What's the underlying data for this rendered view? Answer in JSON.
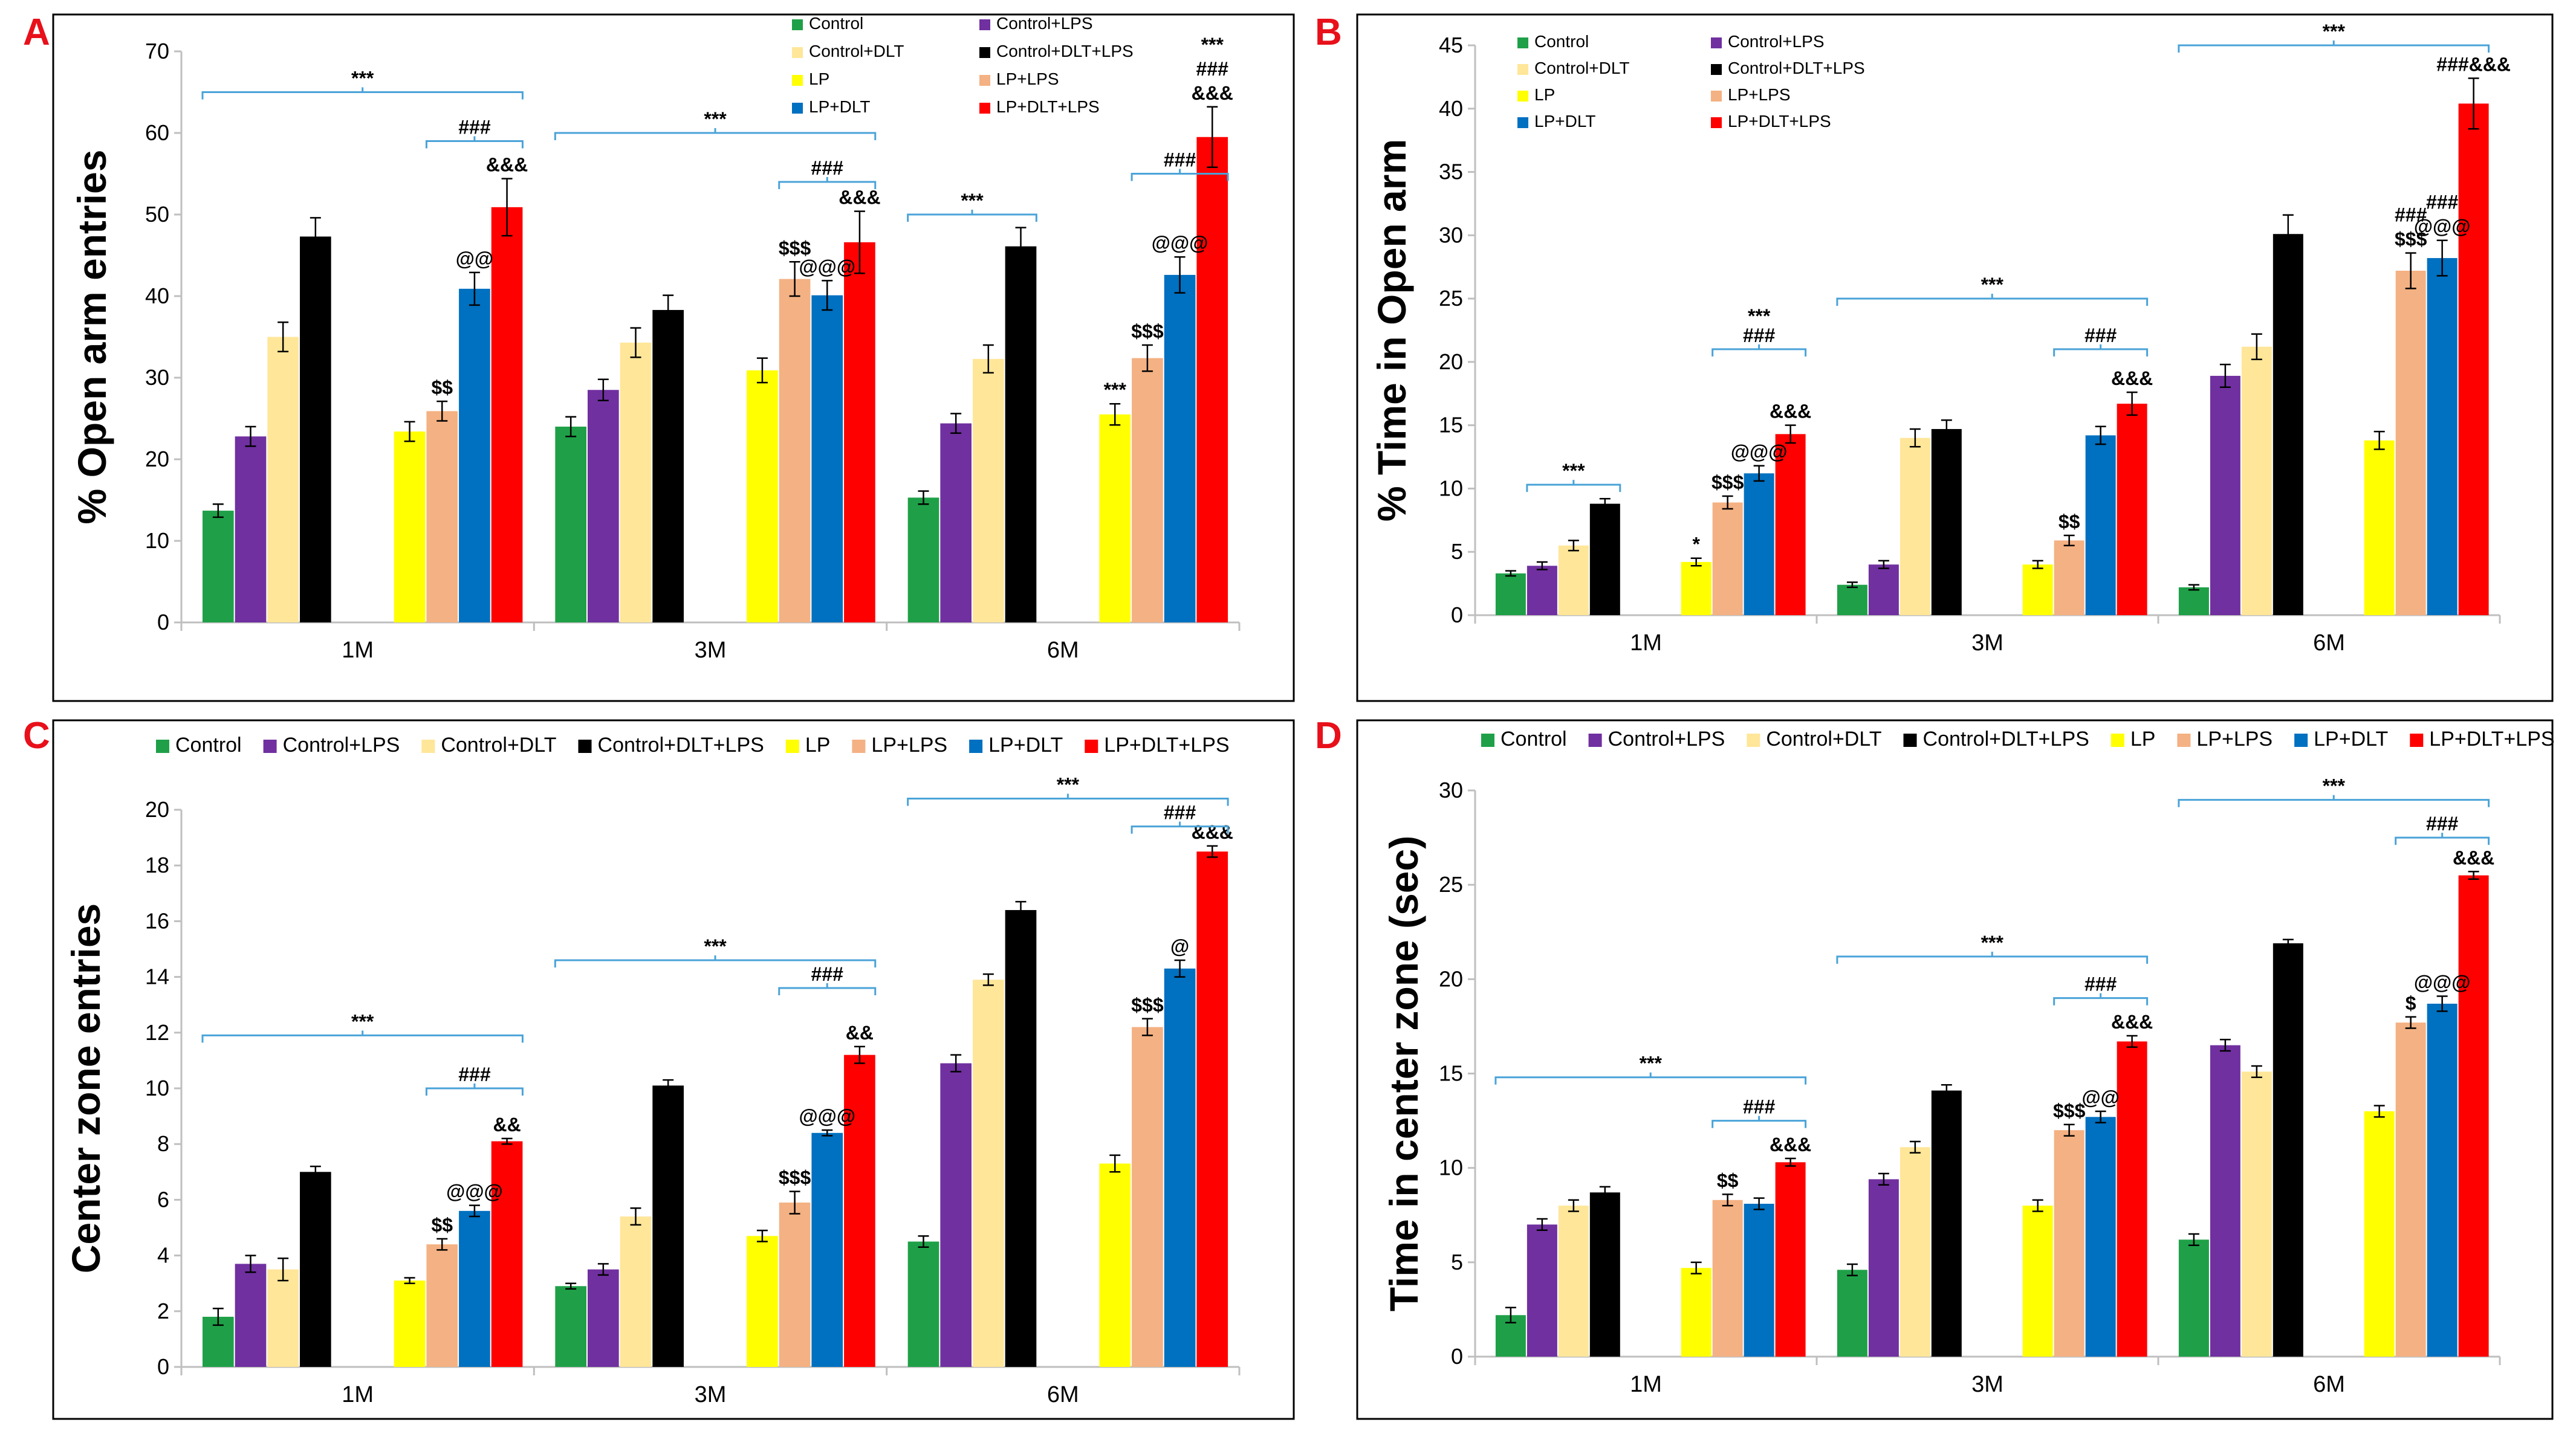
{
  "colors": [
    "#1fa048",
    "#7030a0",
    "#ffe699",
    "#000000",
    "#ffff00",
    "#f4b183",
    "#0070c0",
    "#ff0000"
  ],
  "chart_data": [
    {
      "panel": "A",
      "type": "bar",
      "ylabel": "% Open arm entries",
      "ylim": [
        0,
        70
      ],
      "yticks": [
        "0",
        "10",
        "20",
        "30",
        "40",
        "50",
        "60",
        "70"
      ],
      "categories": [
        "1M",
        "3M",
        "6M"
      ],
      "legend": [
        "Control",
        "Control+LPS",
        "Control+DLT",
        "Control+DLT+LPS",
        "LP",
        "LP+LPS",
        "LP+DLT",
        "LP+DLT+LPS"
      ],
      "series": [
        {
          "name": "Control",
          "values": [
            13.7,
            24.0,
            15.3
          ],
          "errors": [
            0.8,
            1.2,
            0.8
          ]
        },
        {
          "name": "Control+LPS",
          "values": [
            22.8,
            28.5,
            24.4
          ],
          "errors": [
            1.2,
            1.3,
            1.2
          ]
        },
        {
          "name": "Control+DLT",
          "values": [
            35.0,
            34.3,
            32.3
          ],
          "errors": [
            1.8,
            1.8,
            1.7
          ]
        },
        {
          "name": "Control+DLT+LPS",
          "values": [
            47.3,
            38.3,
            46.1
          ],
          "errors": [
            2.3,
            1.8,
            2.3
          ]
        },
        {
          "name": "LP",
          "values": [
            23.4,
            30.9,
            25.5
          ],
          "errors": [
            1.2,
            1.5,
            1.3
          ]
        },
        {
          "name": "LP+LPS",
          "values": [
            25.9,
            42.1,
            32.4
          ],
          "errors": [
            1.2,
            2.1,
            1.6
          ]
        },
        {
          "name": "LP+DLT",
          "values": [
            40.9,
            40.1,
            42.6
          ],
          "errors": [
            2.0,
            1.8,
            2.2
          ]
        },
        {
          "name": "LP+DLT+LPS",
          "values": [
            50.9,
            46.6,
            59.5
          ],
          "errors": [
            3.5,
            3.8,
            3.7
          ]
        }
      ],
      "annotations": [
        {
          "cat": 0,
          "series": 5,
          "text": "$$"
        },
        {
          "cat": 0,
          "series": 6,
          "text": "@@"
        },
        {
          "cat": 0,
          "series": 7,
          "text": "&&&"
        },
        {
          "cat": 1,
          "series": 5,
          "text": "$$$"
        },
        {
          "cat": 1,
          "series": 6,
          "text": "@@@"
        },
        {
          "cat": 1,
          "series": 7,
          "text": "&&&"
        },
        {
          "cat": 2,
          "series": 4,
          "text": "***"
        },
        {
          "cat": 2,
          "series": 5,
          "text": "$$$"
        },
        {
          "cat": 2,
          "series": 6,
          "text": "@@@"
        },
        {
          "cat": 2,
          "series": 7,
          "text": "&&&"
        },
        {
          "cat": 2,
          "series": 7,
          "text": "###"
        },
        {
          "cat": 2,
          "series": 7,
          "text": "***"
        }
      ],
      "brackets": [
        {
          "cat": 0,
          "from": 0,
          "to": 7,
          "y": 65,
          "text": "***"
        },
        {
          "cat": 0,
          "from": 5,
          "to": 7,
          "y": 59,
          "text": "###"
        },
        {
          "cat": 1,
          "from": 0,
          "to": 7,
          "y": 60,
          "text": "***"
        },
        {
          "cat": 1,
          "from": 5,
          "to": 7,
          "y": 54,
          "text": "###"
        },
        {
          "cat": 2,
          "from": 0,
          "to": 3,
          "y": 50,
          "text": "***"
        },
        {
          "cat": 2,
          "from": 5,
          "to": 7,
          "y": 55,
          "text": "###"
        }
      ]
    },
    {
      "panel": "B",
      "type": "bar",
      "ylabel": "% Time in Open arm",
      "ylim": [
        0,
        45
      ],
      "yticks": [
        "0",
        "5",
        "10",
        "15",
        "20",
        "25",
        "30",
        "35",
        "40",
        "45"
      ],
      "categories": [
        "1M",
        "3M",
        "6M"
      ],
      "legend": [
        "Control",
        "Control+LPS",
        "Control+DLT",
        "Control+DLT+LPS",
        "LP",
        "LP+LPS",
        "LP+DLT",
        "LP+DLT+LPS"
      ],
      "series": [
        {
          "name": "Control",
          "values": [
            3.3,
            2.4,
            2.2
          ],
          "errors": [
            0.2,
            0.2,
            0.2
          ]
        },
        {
          "name": "Control+LPS",
          "values": [
            3.9,
            4.0,
            18.9
          ],
          "errors": [
            0.3,
            0.3,
            0.9
          ]
        },
        {
          "name": "Control+DLT",
          "values": [
            5.5,
            14.0,
            21.2
          ],
          "errors": [
            0.4,
            0.7,
            1.0
          ]
        },
        {
          "name": "Control+DLT+LPS",
          "values": [
            8.8,
            14.7,
            30.1
          ],
          "errors": [
            0.4,
            0.7,
            1.5
          ]
        },
        {
          "name": "LP",
          "values": [
            4.2,
            4.0,
            13.8
          ],
          "errors": [
            0.3,
            0.3,
            0.7
          ]
        },
        {
          "name": "LP+LPS",
          "values": [
            8.9,
            5.9,
            27.2
          ],
          "errors": [
            0.5,
            0.4,
            1.4
          ]
        },
        {
          "name": "LP+DLT",
          "values": [
            11.2,
            14.2,
            28.2
          ],
          "errors": [
            0.6,
            0.7,
            1.4
          ]
        },
        {
          "name": "LP+DLT+LPS",
          "values": [
            14.3,
            16.7,
            40.4
          ],
          "errors": [
            0.7,
            0.9,
            2.0
          ]
        }
      ],
      "annotations": [
        {
          "cat": 0,
          "series": 4,
          "text": "*"
        },
        {
          "cat": 0,
          "series": 5,
          "text": "$$$"
        },
        {
          "cat": 0,
          "series": 6,
          "text": "@@@"
        },
        {
          "cat": 0,
          "series": 7,
          "text": "&&&"
        },
        {
          "cat": 1,
          "series": 5,
          "text": "$$"
        },
        {
          "cat": 1,
          "series": 7,
          "text": "&&&"
        },
        {
          "cat": 2,
          "series": 5,
          "text": "$$$"
        },
        {
          "cat": 2,
          "series": 5,
          "text": "###"
        },
        {
          "cat": 2,
          "series": 6,
          "text": "@@@"
        },
        {
          "cat": 2,
          "series": 6,
          "text": "###"
        },
        {
          "cat": 2,
          "series": 7,
          "text": "###&&&"
        }
      ],
      "brackets": [
        {
          "cat": 0,
          "from": 1,
          "to": 3,
          "y": 10.3,
          "text": "***"
        },
        {
          "cat": 0,
          "from": 5,
          "to": 7,
          "y": 21,
          "text": "###"
        },
        {
          "cat": 0,
          "from": 5,
          "to": 7,
          "y": 21,
          "text": "***",
          "above": true
        },
        {
          "cat": 1,
          "from": 0,
          "to": 7,
          "y": 25,
          "text": "***"
        },
        {
          "cat": 1,
          "from": 5,
          "to": 7,
          "y": 21,
          "text": "###"
        },
        {
          "cat": 2,
          "from": 0,
          "to": 7,
          "y": 45,
          "text": "***"
        }
      ]
    },
    {
      "panel": "C",
      "type": "bar",
      "ylabel": "Center zone entries",
      "ylim": [
        0,
        20
      ],
      "yticks": [
        "0",
        "2",
        "4",
        "6",
        "8",
        "10",
        "12",
        "14",
        "16",
        "18",
        "20"
      ],
      "categories": [
        "1M",
        "3M",
        "6M"
      ],
      "legend": [
        "Control",
        "Control+LPS",
        "Control+DLT",
        "Control+DLT+LPS",
        "LP",
        "LP+LPS",
        "LP+DLT",
        "LP+DLT+LPS"
      ],
      "series": [
        {
          "name": "Control",
          "values": [
            1.8,
            2.9,
            4.5
          ],
          "errors": [
            0.3,
            0.1,
            0.2
          ]
        },
        {
          "name": "Control+LPS",
          "values": [
            3.7,
            3.5,
            10.9
          ],
          "errors": [
            0.3,
            0.2,
            0.3
          ]
        },
        {
          "name": "Control+DLT",
          "values": [
            3.5,
            5.4,
            13.9
          ],
          "errors": [
            0.4,
            0.3,
            0.2
          ]
        },
        {
          "name": "Control+DLT+LPS",
          "values": [
            7.0,
            10.1,
            16.4
          ],
          "errors": [
            0.2,
            0.2,
            0.3
          ]
        },
        {
          "name": "LP",
          "values": [
            3.1,
            4.7,
            7.3
          ],
          "errors": [
            0.1,
            0.2,
            0.3
          ]
        },
        {
          "name": "LP+LPS",
          "values": [
            4.4,
            5.9,
            12.2
          ],
          "errors": [
            0.2,
            0.4,
            0.3
          ]
        },
        {
          "name": "LP+DLT",
          "values": [
            5.6,
            8.4,
            14.3
          ],
          "errors": [
            0.2,
            0.1,
            0.3
          ]
        },
        {
          "name": "LP+DLT+LPS",
          "values": [
            8.1,
            11.2,
            18.5
          ],
          "errors": [
            0.1,
            0.3,
            0.2
          ]
        }
      ],
      "annotations": [
        {
          "cat": 0,
          "series": 5,
          "text": "$$"
        },
        {
          "cat": 0,
          "series": 6,
          "text": "@@@"
        },
        {
          "cat": 0,
          "series": 7,
          "text": "&&"
        },
        {
          "cat": 1,
          "series": 5,
          "text": "$$$"
        },
        {
          "cat": 1,
          "series": 6,
          "text": "@@@"
        },
        {
          "cat": 1,
          "series": 7,
          "text": "&&"
        },
        {
          "cat": 2,
          "series": 5,
          "text": "$$$"
        },
        {
          "cat": 2,
          "series": 6,
          "text": "@"
        },
        {
          "cat": 2,
          "series": 7,
          "text": "&&&"
        }
      ],
      "brackets": [
        {
          "cat": 0,
          "from": 0,
          "to": 7,
          "y": 11.9,
          "text": "***"
        },
        {
          "cat": 0,
          "from": 5,
          "to": 7,
          "y": 10,
          "text": "###"
        },
        {
          "cat": 1,
          "from": 0,
          "to": 7,
          "y": 14.6,
          "text": "***"
        },
        {
          "cat": 1,
          "from": 5,
          "to": 7,
          "y": 13.6,
          "text": "###"
        },
        {
          "cat": 2,
          "from": 0,
          "to": 7,
          "y": 20.4,
          "text": "***"
        },
        {
          "cat": 2,
          "from": 5,
          "to": 7,
          "y": 19.4,
          "text": "###"
        }
      ]
    },
    {
      "panel": "D",
      "type": "bar",
      "ylabel": "Time in center zone (sec)",
      "ylim": [
        0,
        30
      ],
      "yticks": [
        "0",
        "5",
        "10",
        "15",
        "20",
        "25",
        "30"
      ],
      "categories": [
        "1M",
        "3M",
        "6M"
      ],
      "legend": [
        "Control",
        "Control+LPS",
        "Control+DLT",
        "Control+DLT+LPS",
        "LP",
        "LP+LPS",
        "LP+DLT",
        "LP+DLT+LPS"
      ],
      "series": [
        {
          "name": "Control",
          "values": [
            2.2,
            4.6,
            6.2
          ],
          "errors": [
            0.4,
            0.3,
            0.3
          ]
        },
        {
          "name": "Control+LPS",
          "values": [
            7.0,
            9.4,
            16.5
          ],
          "errors": [
            0.3,
            0.3,
            0.3
          ]
        },
        {
          "name": "Control+DLT",
          "values": [
            8.0,
            11.1,
            15.1
          ],
          "errors": [
            0.3,
            0.3,
            0.3
          ]
        },
        {
          "name": "Control+DLT+LPS",
          "values": [
            8.7,
            14.1,
            21.9
          ],
          "errors": [
            0.3,
            0.3,
            0.2
          ]
        },
        {
          "name": "LP",
          "values": [
            4.7,
            8.0,
            13.0
          ],
          "errors": [
            0.3,
            0.3,
            0.3
          ]
        },
        {
          "name": "LP+LPS",
          "values": [
            8.3,
            12.0,
            17.7
          ],
          "errors": [
            0.3,
            0.3,
            0.3
          ]
        },
        {
          "name": "LP+DLT",
          "values": [
            8.1,
            12.7,
            18.7
          ],
          "errors": [
            0.3,
            0.3,
            0.4
          ]
        },
        {
          "name": "LP+DLT+LPS",
          "values": [
            10.3,
            16.7,
            25.5
          ],
          "errors": [
            0.2,
            0.3,
            0.2
          ]
        }
      ],
      "annotations": [
        {
          "cat": 0,
          "series": 5,
          "text": "$$"
        },
        {
          "cat": 0,
          "series": 7,
          "text": "&&&"
        },
        {
          "cat": 1,
          "series": 5,
          "text": "$$$"
        },
        {
          "cat": 1,
          "series": 6,
          "text": "@@"
        },
        {
          "cat": 1,
          "series": 7,
          "text": "&&&"
        },
        {
          "cat": 2,
          "series": 5,
          "text": "$"
        },
        {
          "cat": 2,
          "series": 6,
          "text": "@@@"
        },
        {
          "cat": 2,
          "series": 7,
          "text": "&&&"
        }
      ],
      "brackets": [
        {
          "cat": 0,
          "from": 0,
          "to": 7,
          "y": 14.8,
          "text": "***"
        },
        {
          "cat": 0,
          "from": 5,
          "to": 7,
          "y": 12.5,
          "text": "###"
        },
        {
          "cat": 1,
          "from": 0,
          "to": 7,
          "y": 21.2,
          "text": "***"
        },
        {
          "cat": 1,
          "from": 5,
          "to": 7,
          "y": 19,
          "text": "###"
        },
        {
          "cat": 2,
          "from": 0,
          "to": 7,
          "y": 29.5,
          "text": "***"
        },
        {
          "cat": 2,
          "from": 5,
          "to": 7,
          "y": 27.5,
          "text": "###"
        }
      ]
    }
  ]
}
